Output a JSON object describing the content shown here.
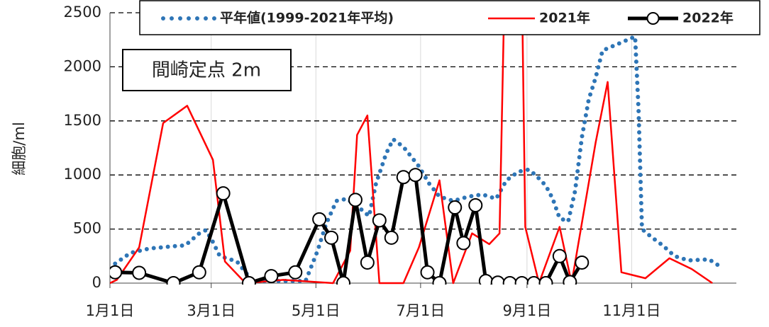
{
  "chart_data": {
    "type": "line",
    "y_label": "細胞/ml",
    "annotation": "間崎定点 2m",
    "legend": "top",
    "grid": true,
    "xlim": [
      0,
      365
    ],
    "xticks": [
      {
        "value": 0,
        "label": "1月1日"
      },
      {
        "value": 59,
        "label": "3月1日"
      },
      {
        "value": 120,
        "label": "5月1日"
      },
      {
        "value": 181,
        "label": "7月1日"
      },
      {
        "value": 243,
        "label": "9月1日"
      },
      {
        "value": 304,
        "label": "11月1日"
      }
    ],
    "ylim": [
      0,
      2500
    ],
    "yticks": [
      0,
      500,
      1000,
      1500,
      2000,
      2500
    ],
    "series": [
      {
        "name": "平年値(1999-2021年平均)",
        "color": "#2e75b6",
        "style": "dotted",
        "x": [
          3,
          12,
          23,
          33,
          44,
          52,
          56,
          60,
          64,
          74,
          83,
          101,
          114,
          121,
          126,
          132,
          138,
          145,
          151,
          155,
          161,
          165,
          171,
          180,
          186,
          192,
          200,
          209,
          217,
          225,
          231,
          238,
          244,
          248,
          254,
          258,
          262,
          267,
          271,
          275,
          279,
          283,
          287,
          306,
          308,
          310,
          316,
          322,
          329,
          337,
          349,
          355
        ],
        "values": [
          180,
          280,
          320,
          335,
          350,
          460,
          490,
          380,
          250,
          200,
          20,
          20,
          20,
          300,
          550,
          760,
          780,
          700,
          620,
          920,
          1200,
          1330,
          1260,
          1080,
          920,
          800,
          760,
          800,
          820,
          780,
          950,
          1030,
          1050,
          1000,
          900,
          780,
          600,
          570,
          850,
          1350,
          1700,
          1900,
          2150,
          2280,
          1600,
          500,
          420,
          350,
          250,
          210,
          220,
          160
        ]
      },
      {
        "name": "2021年",
        "color": "#ff0000",
        "style": "line",
        "x": [
          0,
          4,
          17,
          31,
          45,
          60,
          67,
          79,
          101,
          130,
          140,
          144,
          150,
          157,
          171,
          180,
          192,
          200,
          211,
          221,
          227,
          230,
          240,
          242,
          250,
          262,
          269,
          283,
          290,
          298,
          312,
          326,
          339,
          351
        ],
        "values": [
          0,
          30,
          330,
          1480,
          1640,
          1140,
          200,
          0,
          30,
          0,
          300,
          1370,
          1550,
          0,
          0,
          330,
          950,
          0,
          460,
          360,
          460,
          2800,
          2800,
          520,
          0,
          520,
          0,
          1300,
          1860,
          100,
          45,
          230,
          130,
          0
        ]
      },
      {
        "name": "2022年",
        "color": "#000000",
        "style": "line-marker",
        "x": [
          3,
          17,
          37,
          52,
          66,
          81,
          94,
          108,
          122,
          129,
          136,
          143,
          150,
          157,
          164,
          171,
          178,
          185,
          192,
          201,
          206,
          213,
          219,
          226,
          233,
          240,
          247,
          254,
          262,
          268,
          275
        ],
        "values": [
          100,
          95,
          0,
          100,
          830,
          0,
          65,
          100,
          590,
          420,
          0,
          770,
          190,
          580,
          420,
          980,
          1000,
          100,
          0,
          700,
          370,
          720,
          20,
          5,
          0,
          0,
          0,
          0,
          250,
          10,
          190
        ]
      }
    ]
  }
}
